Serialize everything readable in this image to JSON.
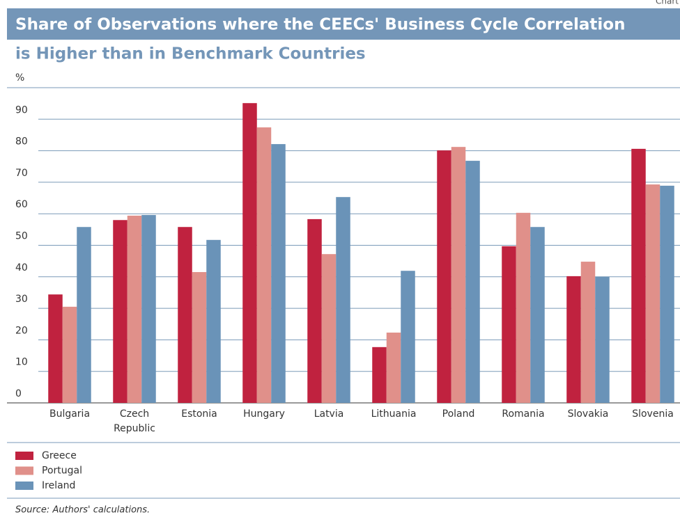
{
  "chart_data": {
    "type": "bar",
    "corner_label": "Chart",
    "title": "Share of Observations where the CEECs' Business Cycle Correlation",
    "subtitle": "is Higher than in Benchmark Countries",
    "ylabel": "%",
    "categories": [
      "Bulgaria",
      "Czech Republic",
      "Estonia",
      "Hungary",
      "Latvia",
      "Lithuania",
      "Poland",
      "Romania",
      "Slovakia",
      "Slovenia"
    ],
    "series": [
      {
        "name": "Greece",
        "color": "#c0223f",
        "values": [
          34.4,
          58,
          55.8,
          95.1,
          58.3,
          17.7,
          80.1,
          49.7,
          40.2,
          80.6
        ]
      },
      {
        "name": "Portugal",
        "color": "#e0908a",
        "values": [
          30.5,
          59.4,
          41.5,
          87.4,
          47.2,
          22.3,
          81.2,
          60.3,
          44.8,
          69.3
        ]
      },
      {
        "name": "Ireland",
        "color": "#6a93b8",
        "values": [
          55.8,
          59.6,
          51.7,
          82.1,
          65.3,
          41.9,
          76.8,
          55.8,
          40.0,
          68.9
        ]
      }
    ],
    "ylim": [
      0,
      100
    ],
    "yticks": [
      0,
      10,
      20,
      30,
      40,
      50,
      60,
      70,
      80,
      90
    ],
    "grid": true,
    "source": "Source: Authors' calculations."
  }
}
